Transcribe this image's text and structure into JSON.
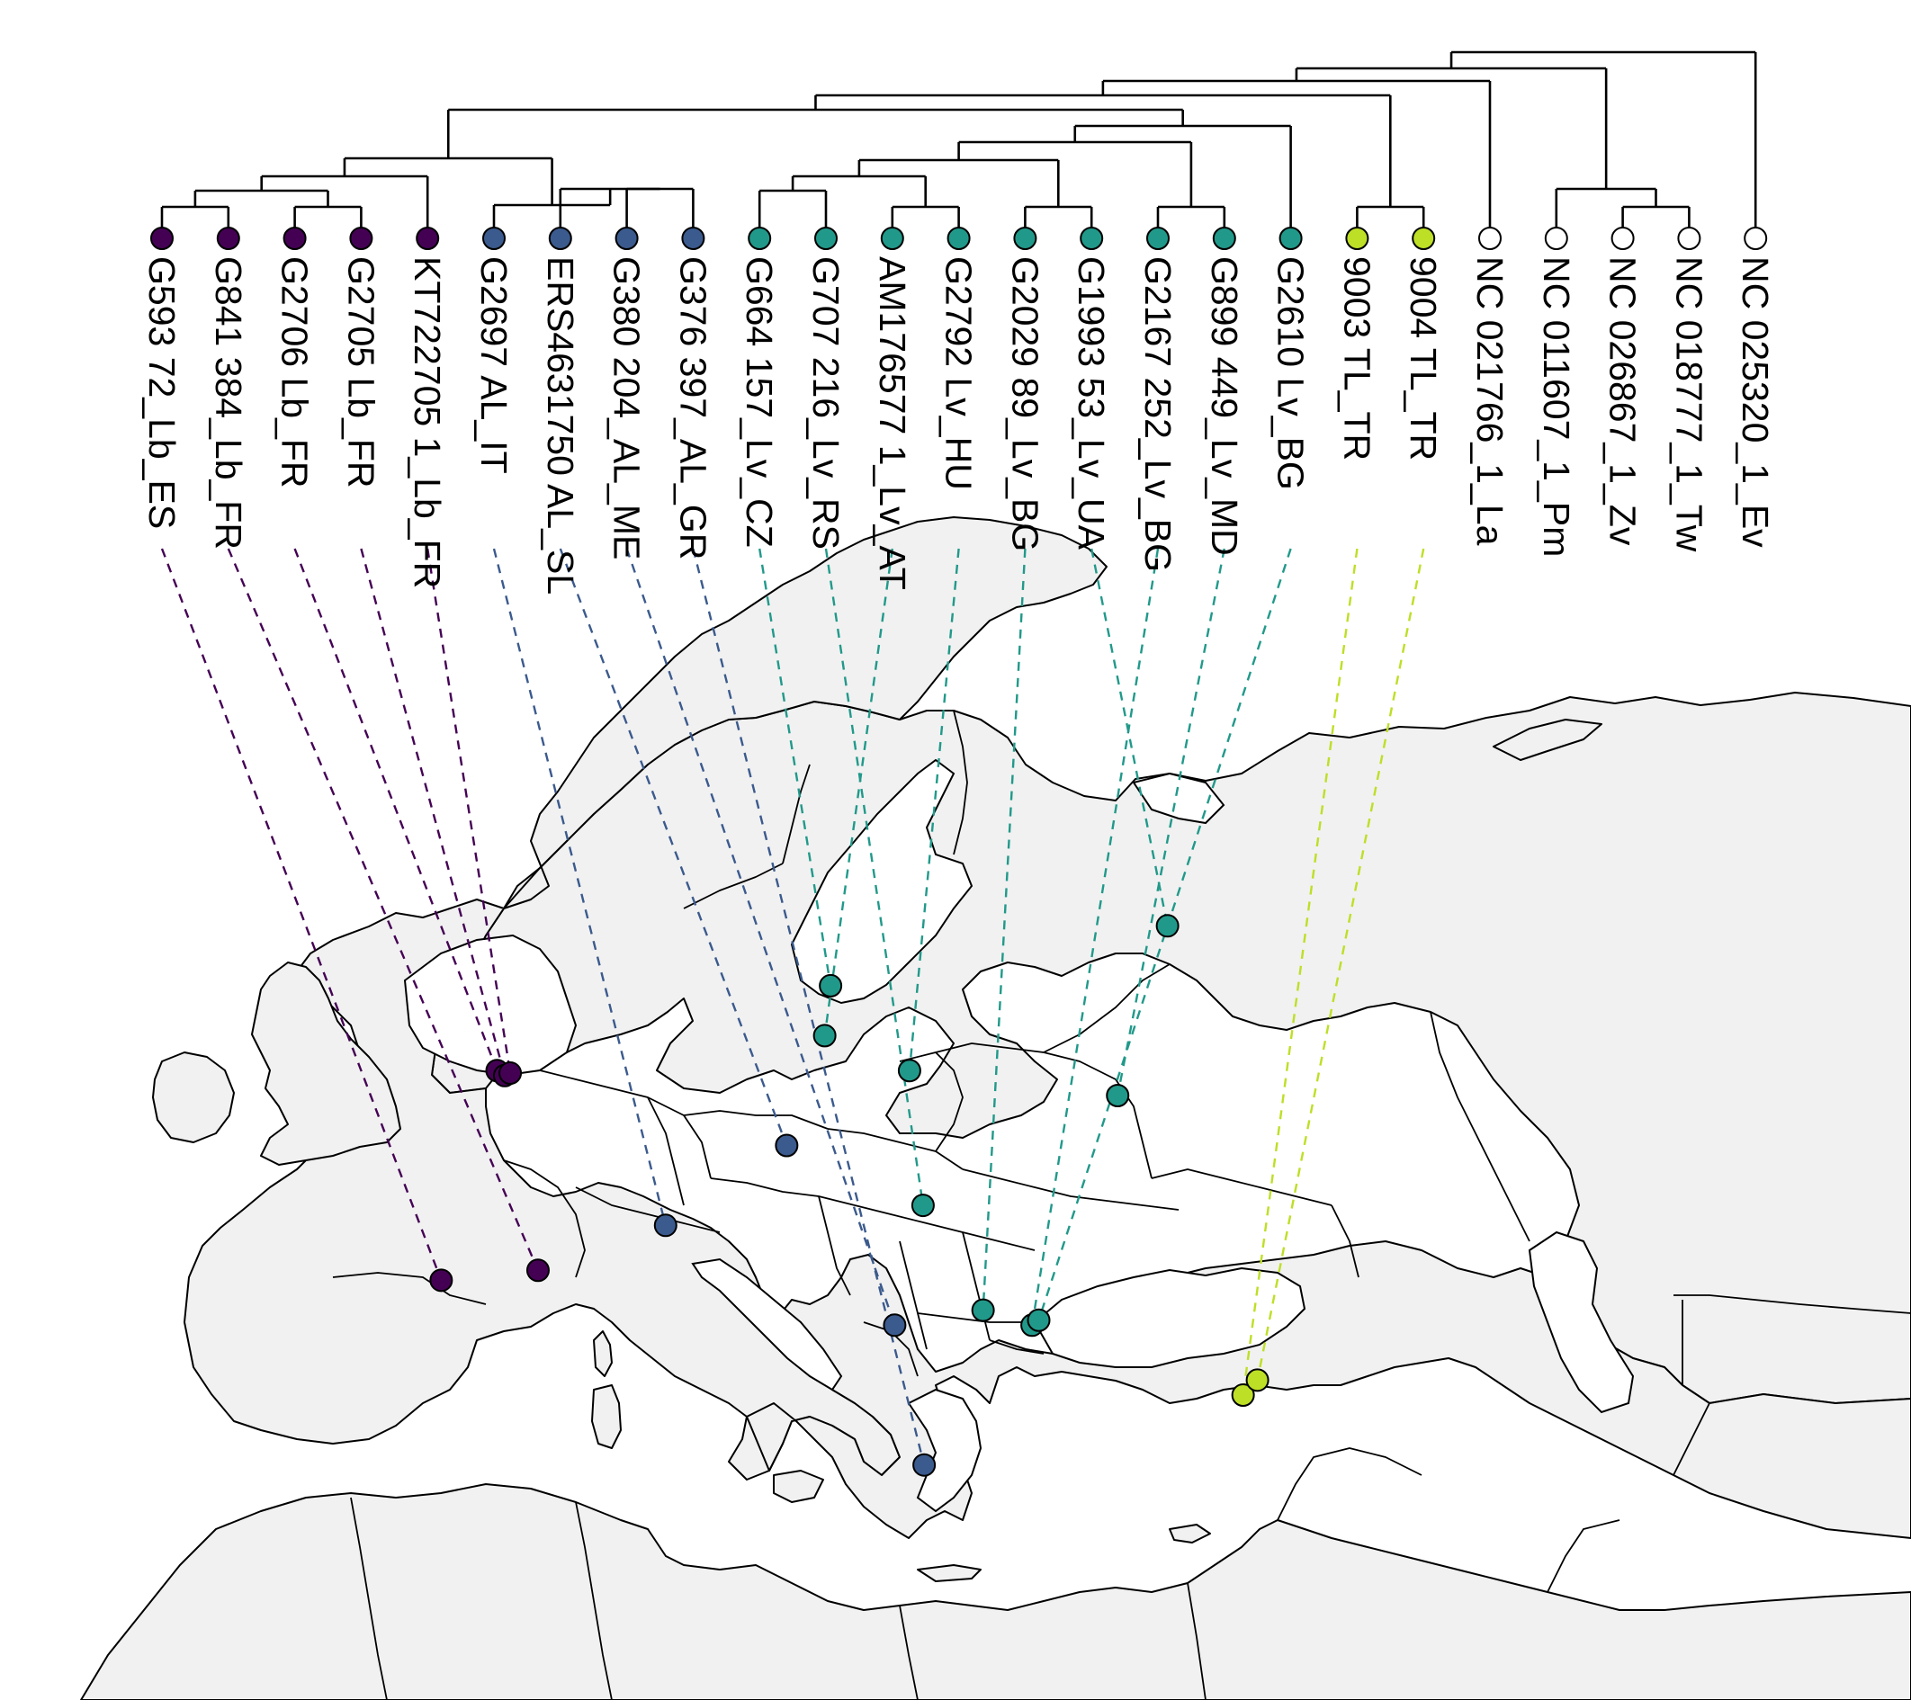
{
  "colors": {
    "lb": "#440154",
    "al": "#3b5a8d",
    "lv": "#21998a",
    "tl": "#bddf26",
    "outgroup": "#ffffff",
    "land": "#f1f1f1",
    "sea": "#ffffff"
  },
  "taxa": [
    {
      "label": "G593 72_Lb_ES",
      "group": "lb"
    },
    {
      "label": "G841 384_Lb_FR",
      "group": "lb"
    },
    {
      "label": "G2706 Lb_FR",
      "group": "lb"
    },
    {
      "label": "G2705 Lb_FR",
      "group": "lb"
    },
    {
      "label": "KT722705 1_Lb_FR",
      "group": "lb"
    },
    {
      "label": "G2697 AL_IT",
      "group": "al"
    },
    {
      "label": "ERS4631750 AL_SL",
      "group": "al"
    },
    {
      "label": "G380 204_AL_ME",
      "group": "al"
    },
    {
      "label": "G376 397_AL_GR",
      "group": "al"
    },
    {
      "label": "G664 157_Lv_CZ",
      "group": "lv"
    },
    {
      "label": "G707 216_Lv_RS",
      "group": "lv"
    },
    {
      "label": "AM176577 1_Lv_AT",
      "group": "lv"
    },
    {
      "label": "G2792 Lv_HU",
      "group": "lv"
    },
    {
      "label": "G2029 89_Lv_BG",
      "group": "lv"
    },
    {
      "label": "G1993 53_Lv_UA",
      "group": "lv"
    },
    {
      "label": "G2167 252_Lv_BG",
      "group": "lv"
    },
    {
      "label": "G899 449_Lv_MD",
      "group": "lv"
    },
    {
      "label": "G2610 Lv_BG",
      "group": "lv"
    },
    {
      "label": "9003 TL_TR",
      "group": "tl"
    },
    {
      "label": "9004 TL_TR",
      "group": "tl"
    },
    {
      "label": "NC 021766_1_La",
      "group": "outgroup"
    },
    {
      "label": "NC 011607_1_Pm",
      "group": "outgroup"
    },
    {
      "label": "NC 026867_1_Zv",
      "group": "outgroup"
    },
    {
      "label": "NC 018777_1_Tw",
      "group": "outgroup"
    },
    {
      "label": "NC 025320_1_Ev",
      "group": "outgroup"
    }
  ],
  "sites": [
    {
      "taxon": 0,
      "lon": -1.6,
      "lat": 43.3
    },
    {
      "taxon": 1,
      "lon": 2.9,
      "lat": 43.5
    },
    {
      "taxon": 2,
      "lon": 2.2,
      "lat": 47.5
    },
    {
      "taxon": 3,
      "lon": 2.5,
      "lat": 47.4
    },
    {
      "taxon": 4,
      "lon": 2.75,
      "lat": 47.45
    },
    {
      "taxon": 5,
      "lon": 8.9,
      "lat": 44.4
    },
    {
      "taxon": 6,
      "lon": 14.5,
      "lat": 46.0
    },
    {
      "taxon": 7,
      "lon": 19.2,
      "lat": 42.4
    },
    {
      "taxon": 8,
      "lon": 20.6,
      "lat": 39.6
    },
    {
      "taxon": 9,
      "lon": 16.6,
      "lat": 49.2
    },
    {
      "taxon": 10,
      "lon": 20.5,
      "lat": 44.8
    },
    {
      "taxon": 11,
      "lon": 16.3,
      "lat": 48.2
    },
    {
      "taxon": 12,
      "lon": 19.9,
      "lat": 47.5
    },
    {
      "taxon": 13,
      "lon": 23.3,
      "lat": 42.7
    },
    {
      "taxon": 14,
      "lon": 30.5,
      "lat": 50.4
    },
    {
      "taxon": 15,
      "lon": 25.6,
      "lat": 42.4
    },
    {
      "taxon": 16,
      "lon": 28.9,
      "lat": 47.0
    },
    {
      "taxon": 17,
      "lon": 25.9,
      "lat": 42.5
    },
    {
      "taxon": 18,
      "lon": 35.8,
      "lat": 41.0
    },
    {
      "taxon": 19,
      "lon": 36.4,
      "lat": 41.3
    }
  ]
}
